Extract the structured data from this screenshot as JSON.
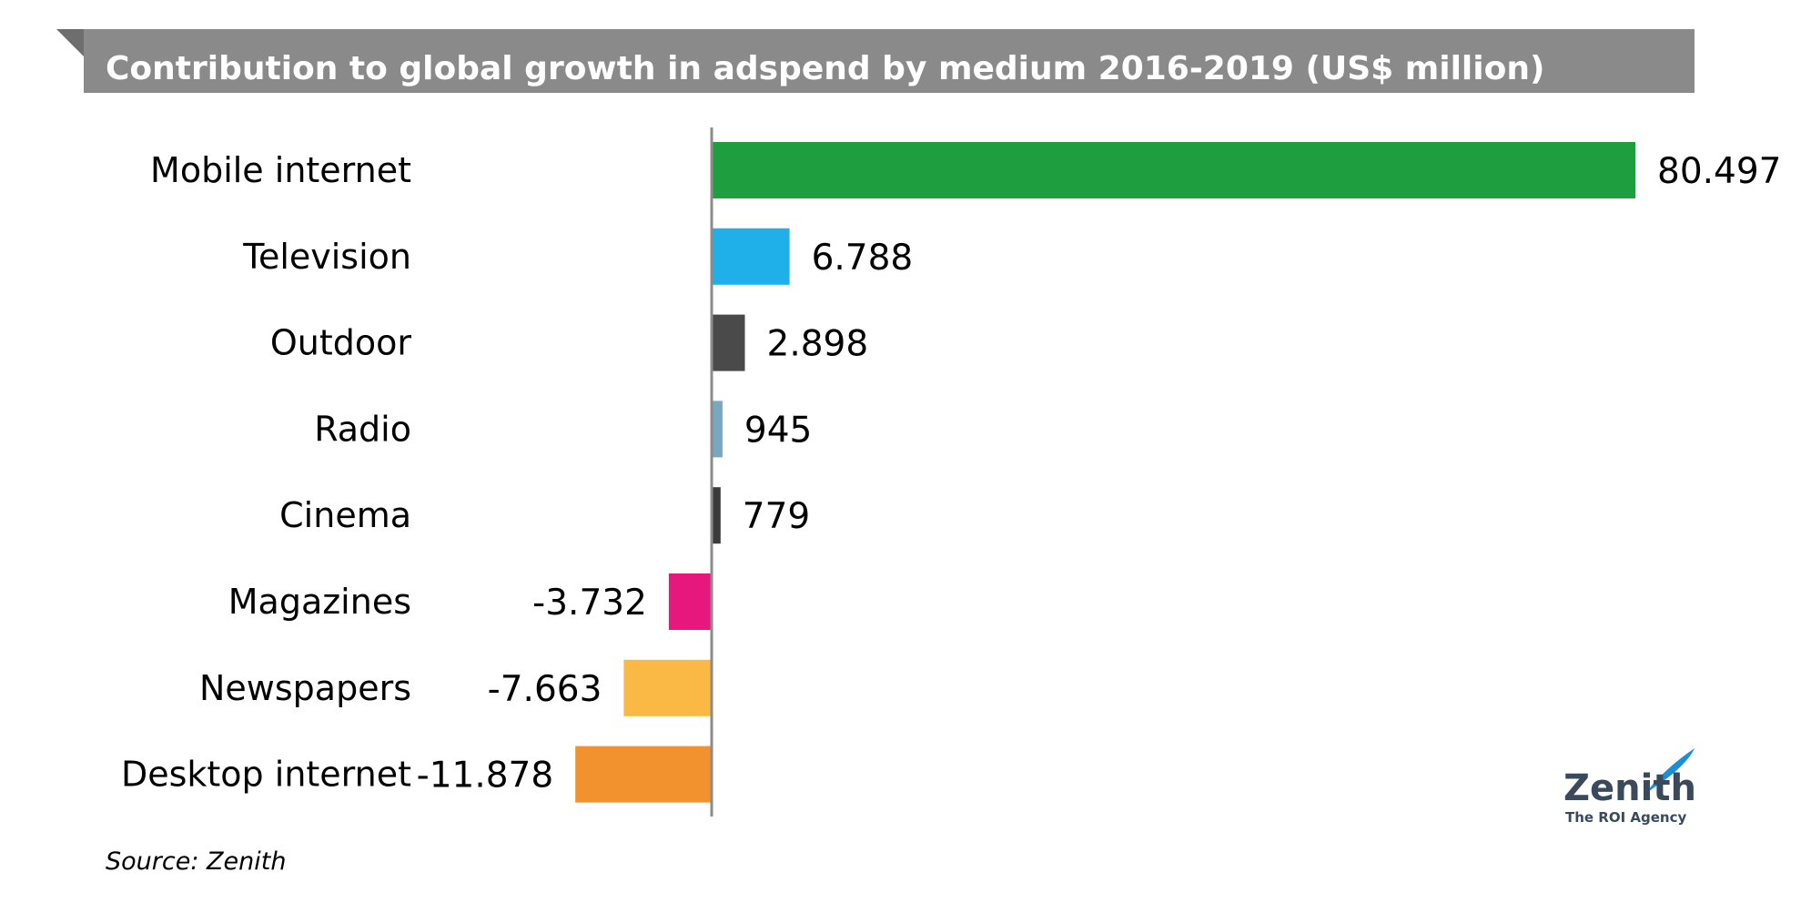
{
  "chart_data": {
    "type": "bar",
    "orientation": "horizontal",
    "title": "Contribution to global growth in adspend by medium 2016-2019 (US$ million)",
    "categories": [
      "Mobile internet",
      "Television",
      "Outdoor",
      "Radio",
      "Cinema",
      "Magazines",
      "Newspapers",
      "Desktop internet"
    ],
    "values": [
      80497,
      6788,
      2898,
      945,
      779,
      -3732,
      -7663,
      -11878
    ],
    "value_labels": [
      "80.497",
      "6.788",
      "2.898",
      "945",
      "779",
      "-3.732",
      "-7.663",
      "-11.878"
    ],
    "colors": [
      "#1f9e3f",
      "#1fb0ea",
      "#4a4a4a",
      "#79a6c0",
      "#3b3b3b",
      "#e6177d",
      "#f9b944",
      "#f2922f"
    ],
    "xlabel": "",
    "ylabel": "",
    "grid": false,
    "legend": "none"
  },
  "source": "Source: Zenith",
  "logo": {
    "name": "Zenith",
    "tagline": "The ROI Agency",
    "color": "#3a4a5c",
    "accent": "#1a8fd8"
  },
  "colors": {
    "title_bar": "#8a8a8a",
    "title_bar_dark": "#6e6e6e",
    "axis": "#8c8c8c"
  }
}
